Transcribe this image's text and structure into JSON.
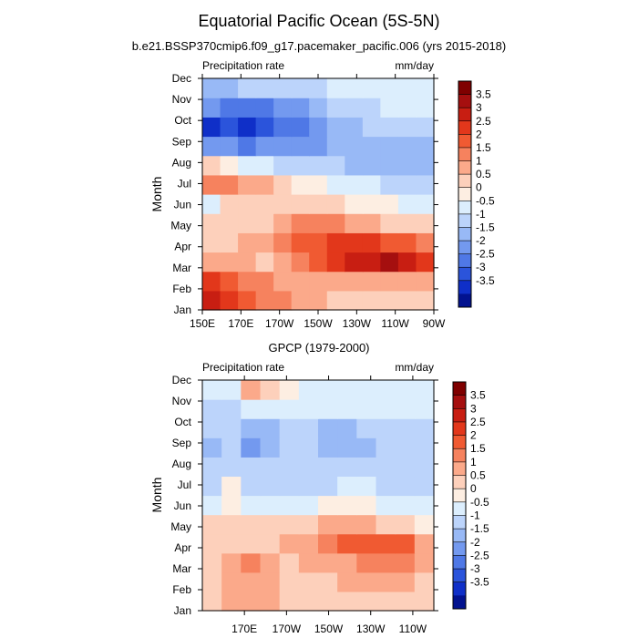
{
  "figure": {
    "title": "Equatorial Pacific Ocean (5S-5N)"
  },
  "colorbar": {
    "levels": [
      "3.5",
      "3",
      "2.5",
      "2",
      "1.5",
      "1",
      "0.5",
      "0",
      "-0.5",
      "-1",
      "-1.5",
      "-2",
      "-2.5",
      "-3",
      "-3.5"
    ],
    "colors": [
      "#7f0000",
      "#a50f0f",
      "#c81e12",
      "#e2371b",
      "#f05a32",
      "#f6825e",
      "#fba98a",
      "#fdd0bb",
      "#fdeee2",
      "#dceefd",
      "#bcd4fb",
      "#98b9f6",
      "#7399ef",
      "#4f78e6",
      "#2b54db",
      "#0f2fc8",
      "#02128f"
    ]
  },
  "chart_data": [
    {
      "type": "heatmap",
      "subtitle": "b.e21.BSSP370cmip6.f09_g17.pacemaker_pacific.006 (yrs 2015-2018)",
      "left_label": "Precipitation rate",
      "right_label": "mm/day",
      "ylabel": "Month",
      "xlabel": "",
      "x_ticks": [
        "150E",
        "170E",
        "170W",
        "150W",
        "130W",
        "110W",
        "90W"
      ],
      "x_range": [
        150,
        270
      ],
      "y_ticks": [
        "Jan",
        "Feb",
        "Mar",
        "Apr",
        "May",
        "Jun",
        "Jul",
        "Aug",
        "Sep",
        "Oct",
        "Nov",
        "Dec"
      ],
      "lon": [
        150,
        160,
        170,
        180,
        190,
        200,
        210,
        220,
        230,
        240,
        250,
        260,
        270
      ],
      "values": [
        [
          3.0,
          2.5,
          2.0,
          1.5,
          1.5,
          1.0,
          1.0,
          0.5,
          0.5,
          0.5,
          0.5,
          0.5,
          0.5
        ],
        [
          2.5,
          2.0,
          1.5,
          1.5,
          1.0,
          1.0,
          1.0,
          1.0,
          1.0,
          1.0,
          1.0,
          1.0,
          1.0
        ],
        [
          1.0,
          1.0,
          1.0,
          0.5,
          1.0,
          1.5,
          2.0,
          2.5,
          3.0,
          3.0,
          3.5,
          3.0,
          2.5
        ],
        [
          0.5,
          0.5,
          1.0,
          1.0,
          1.5,
          2.0,
          2.0,
          2.5,
          2.5,
          2.5,
          2.0,
          2.0,
          1.5
        ],
        [
          0.5,
          0.5,
          0.5,
          0.5,
          1.0,
          1.5,
          1.5,
          1.5,
          1.0,
          1.0,
          0.5,
          0.5,
          0.5
        ],
        [
          -0.5,
          0.5,
          0.5,
          0.5,
          0.5,
          0.5,
          0.5,
          0.5,
          0.0,
          0.0,
          0.0,
          -0.5,
          -0.5
        ],
        [
          1.5,
          1.5,
          1.0,
          1.0,
          0.5,
          0.0,
          0.0,
          -0.5,
          -0.5,
          -0.5,
          -1.0,
          -1.0,
          -1.0
        ],
        [
          0.5,
          0.0,
          -0.5,
          -0.5,
          -1.0,
          -1.0,
          -1.0,
          -1.0,
          -1.5,
          -1.5,
          -1.5,
          -1.5,
          -1.5
        ],
        [
          -2.0,
          -2.0,
          -2.5,
          -2.0,
          -2.0,
          -2.0,
          -2.0,
          -1.5,
          -1.5,
          -1.5,
          -1.5,
          -1.5,
          -1.5
        ],
        [
          -3.5,
          -3.0,
          -3.5,
          -3.0,
          -2.5,
          -2.5,
          -2.0,
          -1.5,
          -1.5,
          -1.0,
          -1.0,
          -1.0,
          -1.0
        ],
        [
          -2.0,
          -2.5,
          -2.5,
          -2.5,
          -2.0,
          -2.0,
          -1.5,
          -1.0,
          -1.0,
          -1.0,
          -0.5,
          -0.5,
          -0.5
        ],
        [
          -1.5,
          -1.5,
          -1.0,
          -1.0,
          -1.0,
          -1.0,
          -1.0,
          -0.5,
          -0.5,
          -0.5,
          -0.5,
          -0.5,
          -0.5
        ]
      ]
    },
    {
      "type": "heatmap",
      "subtitle": "GPCP (1979-2000)",
      "left_label": "Precipitation rate",
      "right_label": "mm/day",
      "ylabel": "Month",
      "xlabel": "",
      "x_ticks": [
        "170E",
        "170W",
        "150W",
        "130W",
        "110W"
      ],
      "x_range": [
        150,
        260
      ],
      "y_ticks": [
        "Jan",
        "Feb",
        "Mar",
        "Apr",
        "May",
        "Jun",
        "Jul",
        "Aug",
        "Sep",
        "Oct",
        "Nov",
        "Dec"
      ],
      "lon": [
        150,
        160,
        170,
        180,
        190,
        200,
        210,
        220,
        230,
        240,
        250,
        260
      ],
      "values": [
        [
          0.5,
          1.0,
          1.0,
          1.0,
          0.5,
          0.5,
          0.5,
          0.5,
          0.5,
          0.5,
          0.5,
          0.5
        ],
        [
          0.5,
          1.0,
          1.0,
          1.0,
          0.5,
          0.5,
          0.5,
          1.0,
          1.0,
          1.0,
          1.0,
          0.5
        ],
        [
          0.5,
          1.0,
          1.5,
          1.0,
          0.5,
          1.0,
          1.0,
          1.0,
          1.5,
          1.5,
          1.5,
          1.0
        ],
        [
          0.5,
          0.5,
          0.5,
          0.5,
          1.0,
          1.0,
          1.5,
          2.0,
          2.0,
          2.0,
          2.0,
          1.0
        ],
        [
          0.5,
          0.5,
          0.5,
          0.5,
          0.5,
          0.5,
          1.0,
          1.0,
          1.0,
          0.5,
          0.5,
          0.0
        ],
        [
          -0.5,
          0.0,
          -0.5,
          -0.5,
          -0.5,
          -0.5,
          0.0,
          0.0,
          0.0,
          -0.5,
          -0.5,
          -0.5
        ],
        [
          -1.0,
          0.0,
          -1.0,
          -1.0,
          -1.0,
          -1.0,
          -1.0,
          -0.5,
          -0.5,
          -1.0,
          -1.0,
          -1.0
        ],
        [
          -1.0,
          -1.0,
          -1.0,
          -1.0,
          -1.0,
          -1.0,
          -1.0,
          -1.0,
          -1.0,
          -1.0,
          -1.0,
          -1.0
        ],
        [
          -1.5,
          -1.0,
          -2.0,
          -1.5,
          -1.0,
          -1.0,
          -1.5,
          -1.5,
          -1.5,
          -1.0,
          -1.0,
          -1.0
        ],
        [
          -1.0,
          -1.0,
          -1.5,
          -1.5,
          -1.0,
          -1.0,
          -1.5,
          -1.5,
          -1.0,
          -1.0,
          -1.0,
          -1.0
        ],
        [
          -1.0,
          -1.0,
          -0.5,
          -0.5,
          -0.5,
          -0.5,
          -0.5,
          -0.5,
          -0.5,
          -0.5,
          -0.5,
          -0.5
        ],
        [
          -0.5,
          -0.5,
          1.0,
          0.5,
          0.0,
          -0.5,
          -0.5,
          -0.5,
          -0.5,
          -0.5,
          -0.5,
          -0.5
        ]
      ]
    }
  ]
}
